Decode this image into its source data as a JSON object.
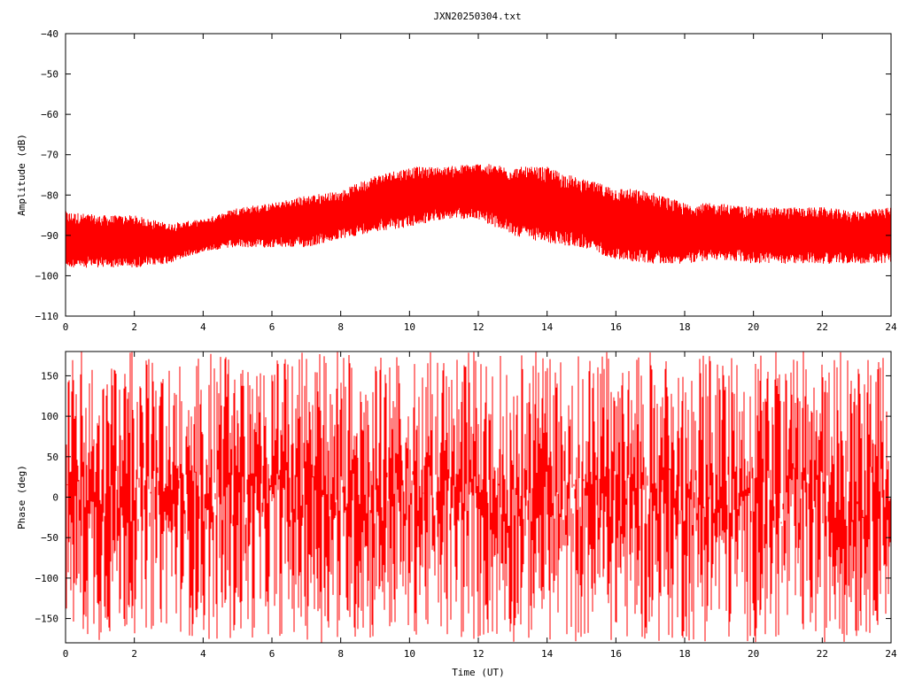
{
  "title": "JXN20250304.txt",
  "colors": {
    "series": "#ff0000",
    "axes": "#000000",
    "background": "#ffffff"
  },
  "chart_data": [
    {
      "type": "line",
      "panel": "amplitude",
      "title": "JXN20250304.txt",
      "xlabel": "",
      "ylabel": "Amplitude (dB)",
      "xlim": [
        0,
        24
      ],
      "ylim": [
        -110,
        -40
      ],
      "xticks": [
        0,
        2,
        4,
        6,
        8,
        10,
        12,
        14,
        16,
        18,
        20,
        22,
        24
      ],
      "yticks": [
        -40,
        -50,
        -60,
        -70,
        -80,
        -90,
        -100,
        -110
      ],
      "grid": false,
      "series": [
        {
          "color": "#ff0000",
          "x": [
            0,
            1,
            2,
            3,
            4,
            5,
            6,
            7,
            8,
            9,
            10,
            11,
            12,
            13,
            14,
            15,
            16,
            17,
            18,
            19,
            20,
            21,
            22,
            23,
            24
          ],
          "y_min": [
            -98,
            -98,
            -98,
            -97,
            -94,
            -93,
            -93,
            -93,
            -91,
            -89,
            -88,
            -86,
            -86,
            -90,
            -92,
            -93,
            -96,
            -97,
            -97,
            -96,
            -97,
            -97,
            -97,
            -97,
            -97
          ],
          "y_max": [
            -84,
            -85,
            -85,
            -87,
            -86,
            -83,
            -82,
            -80,
            -79,
            -75,
            -73,
            -73,
            -72,
            -73,
            -73,
            -76,
            -78,
            -79,
            -82,
            -82,
            -83,
            -83,
            -83,
            -84,
            -83
          ]
        }
      ]
    },
    {
      "type": "line",
      "panel": "phase",
      "xlabel": "Time (UT)",
      "ylabel": "Phase (deg)",
      "xlim": [
        0,
        24
      ],
      "ylim": [
        -180,
        180
      ],
      "xticks": [
        0,
        2,
        4,
        6,
        8,
        10,
        12,
        14,
        16,
        18,
        20,
        22,
        24
      ],
      "yticks": [
        150,
        100,
        50,
        0,
        -50,
        -100,
        -150
      ],
      "grid": false,
      "series": [
        {
          "color": "#ff0000",
          "x": [
            0,
            1,
            2,
            3,
            4,
            5,
            6,
            7,
            8,
            9,
            10,
            11,
            12,
            13,
            14,
            15,
            16,
            17,
            18,
            19,
            20,
            21,
            22,
            23,
            24
          ],
          "y_min": [
            -180,
            -180,
            -170,
            -160,
            -180,
            -180,
            -170,
            -180,
            -180,
            -180,
            -170,
            -180,
            -180,
            -180,
            -180,
            -180,
            -180,
            -180,
            -180,
            -180,
            -180,
            -180,
            -180,
            -180,
            -150
          ],
          "y_max": [
            180,
            180,
            180,
            170,
            180,
            180,
            180,
            180,
            180,
            180,
            180,
            180,
            180,
            180,
            180,
            180,
            180,
            180,
            180,
            180,
            180,
            180,
            180,
            180,
            180
          ]
        }
      ]
    }
  ]
}
